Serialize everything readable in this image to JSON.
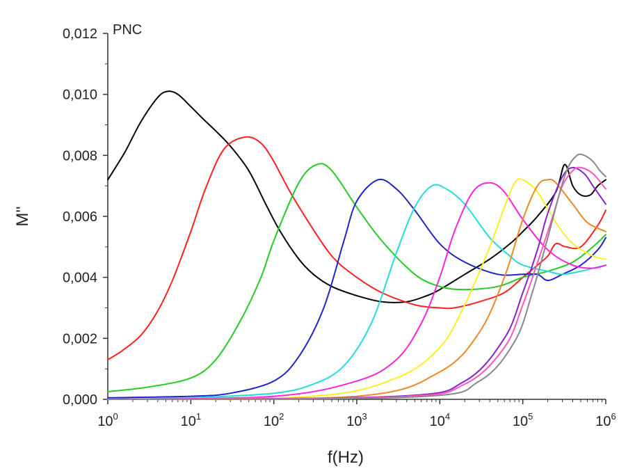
{
  "chart_data": {
    "type": "line",
    "annotation": "PNC",
    "xlabel": "f(Hz)",
    "ylabel": "M''",
    "xscale": "log",
    "xlim": [
      1,
      1000000
    ],
    "ylim": [
      0,
      0.012
    ],
    "grid": false,
    "legend": "none",
    "x_ticks": [
      {
        "base": "10",
        "exp": "0",
        "value": 1
      },
      {
        "base": "10",
        "exp": "1",
        "value": 10
      },
      {
        "base": "10",
        "exp": "2",
        "value": 100
      },
      {
        "base": "10",
        "exp": "3",
        "value": 1000
      },
      {
        "base": "10",
        "exp": "4",
        "value": 10000
      },
      {
        "base": "10",
        "exp": "5",
        "value": 100000
      },
      {
        "base": "10",
        "exp": "6",
        "value": 1000000
      }
    ],
    "y_ticks": [
      {
        "label": "0,000",
        "value": 0
      },
      {
        "label": "0,002",
        "value": 0.002
      },
      {
        "label": "0,004",
        "value": 0.004
      },
      {
        "label": "0,006",
        "value": 0.006
      },
      {
        "label": "0,008",
        "value": 0.008
      },
      {
        "label": "0,010",
        "value": 0.01
      },
      {
        "label": "0,012",
        "value": 0.012
      }
    ],
    "series": [
      {
        "color": "#000000",
        "x": [
          1,
          1.6,
          2.5,
          4,
          5.3,
          7,
          10,
          14,
          20,
          30,
          50,
          80,
          120,
          200,
          300,
          500,
          1000,
          2000,
          4000,
          7000,
          10000,
          20000,
          40000,
          70000,
          100000,
          150000,
          250000,
          320000,
          400000,
          500000,
          650000,
          800000,
          1000000
        ],
        "y": [
          0.0072,
          0.0081,
          0.0091,
          0.0099,
          0.0101,
          0.01,
          0.0096,
          0.0092,
          0.0088,
          0.0083,
          0.0075,
          0.0064,
          0.0055,
          0.0046,
          0.0041,
          0.0037,
          0.0034,
          0.0032,
          0.0032,
          0.0034,
          0.0036,
          0.0041,
          0.0046,
          0.0051,
          0.0055,
          0.006,
          0.0068,
          0.0077,
          0.007,
          0.0067,
          0.0067,
          0.007,
          0.0072
        ]
      },
      {
        "color": "#ff2020",
        "x": [
          1,
          1.5,
          2.5,
          4,
          6,
          10,
          15,
          25,
          45,
          70,
          100,
          150,
          250,
          500,
          1000,
          2000,
          5000,
          10000,
          15000,
          30000,
          60000,
          100000,
          150000,
          200000,
          250000,
          330000,
          500000,
          800000,
          1000000
        ],
        "y": [
          0.0013,
          0.0016,
          0.0021,
          0.0029,
          0.0039,
          0.0055,
          0.0069,
          0.0082,
          0.0086,
          0.0084,
          0.0078,
          0.0069,
          0.0059,
          0.0047,
          0.004,
          0.0035,
          0.0031,
          0.003,
          0.003,
          0.0032,
          0.0035,
          0.004,
          0.0044,
          0.0047,
          0.0051,
          0.005,
          0.005,
          0.0057,
          0.0062
        ]
      },
      {
        "color": "#22cc22",
        "x": [
          1,
          3,
          10,
          20,
          40,
          70,
          100,
          200,
          330,
          500,
          1000,
          2000,
          5000,
          10000,
          20000,
          50000,
          100000,
          200000,
          400000,
          700000,
          1000000
        ],
        "y": [
          0.00025,
          0.0004,
          0.0007,
          0.0013,
          0.0026,
          0.004,
          0.0052,
          0.0071,
          0.0077,
          0.0075,
          0.0063,
          0.0052,
          0.0041,
          0.0037,
          0.0036,
          0.0037,
          0.004,
          0.0042,
          0.0045,
          0.005,
          0.0054
        ]
      },
      {
        "color": "#2222cc",
        "x": [
          1,
          10,
          30,
          100,
          200,
          400,
          700,
          1000,
          1800,
          3000,
          5000,
          10000,
          20000,
          50000,
          100000,
          150000,
          200000,
          300000,
          500000,
          800000,
          1000000
        ],
        "y": [
          5e-05,
          0.0001,
          0.0002,
          0.0006,
          0.0014,
          0.003,
          0.0052,
          0.0065,
          0.0072,
          0.0069,
          0.0062,
          0.0051,
          0.0045,
          0.0041,
          0.0041,
          0.0041,
          0.0039,
          0.0041,
          0.0044,
          0.0049,
          0.0053
        ]
      },
      {
        "color": "#22dddd",
        "x": [
          1,
          10,
          100,
          300,
          700,
          1500,
          3000,
          5000,
          8000,
          12000,
          20000,
          40000,
          70000,
          100000,
          200000,
          300000,
          500000,
          700000,
          1000000
        ],
        "y": [
          0.0,
          5e-05,
          0.0002,
          0.0005,
          0.0011,
          0.0025,
          0.0048,
          0.0063,
          0.007,
          0.0069,
          0.0064,
          0.0053,
          0.0047,
          0.0044,
          0.0042,
          0.0041,
          0.0042,
          0.0043,
          0.0044
        ]
      },
      {
        "color": "#ff22dd",
        "x": [
          1,
          100,
          1000,
          3000,
          6000,
          10000,
          15000,
          25000,
          40000,
          60000,
          100000,
          200000,
          400000,
          700000,
          1000000
        ],
        "y": [
          0.0,
          0.0001,
          0.0006,
          0.0013,
          0.0025,
          0.004,
          0.0055,
          0.0068,
          0.0071,
          0.0068,
          0.0059,
          0.0049,
          0.0044,
          0.0043,
          0.0044
        ]
      },
      {
        "color": "#ffee22",
        "x": [
          1,
          300,
          3000,
          10000,
          20000,
          40000,
          60000,
          80000,
          100000,
          150000,
          250000,
          400000,
          700000,
          1000000
        ],
        "y": [
          0.0,
          0.0001,
          0.0007,
          0.0017,
          0.0031,
          0.005,
          0.0063,
          0.0071,
          0.0072,
          0.0068,
          0.0058,
          0.0051,
          0.0047,
          0.0046
        ]
      },
      {
        "color": "#ee8822",
        "x": [
          1,
          1000,
          10000,
          30000,
          60000,
          100000,
          150000,
          200000,
          250000,
          400000,
          600000,
          1000000
        ],
        "y": [
          0.0,
          0.0001,
          0.0009,
          0.0022,
          0.004,
          0.0059,
          0.007,
          0.0072,
          0.0071,
          0.0064,
          0.0058,
          0.0055
        ]
      },
      {
        "color": "#8822cc",
        "x": [
          1,
          3000,
          20000,
          60000,
          100000,
          150000,
          200000,
          300000,
          400000,
          550000,
          700000,
          1000000
        ],
        "y": [
          0.0,
          0.0001,
          0.0006,
          0.002,
          0.0035,
          0.0049,
          0.0061,
          0.0073,
          0.0076,
          0.0074,
          0.007,
          0.0064
        ]
      },
      {
        "color": "#ff55bb",
        "x": [
          1,
          3000,
          20000,
          60000,
          100000,
          160000,
          230000,
          300000,
          400000,
          500000,
          700000,
          1000000
        ],
        "y": [
          0.0,
          8e-05,
          0.0005,
          0.0017,
          0.0031,
          0.0047,
          0.006,
          0.007,
          0.0075,
          0.0076,
          0.0074,
          0.0069
        ]
      },
      {
        "color": "#888888",
        "x": [
          1,
          5000,
          30000,
          80000,
          130000,
          200000,
          280000,
          350000,
          450000,
          550000,
          700000,
          850000,
          1000000
        ],
        "y": [
          0.0,
          8e-05,
          0.0006,
          0.0019,
          0.0035,
          0.0053,
          0.0068,
          0.0076,
          0.008,
          0.008,
          0.0078,
          0.0075,
          0.0073
        ]
      }
    ]
  }
}
